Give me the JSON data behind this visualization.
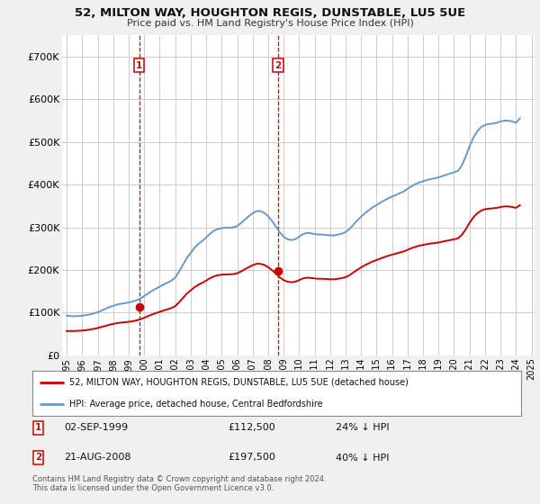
{
  "title": "52, MILTON WAY, HOUGHTON REGIS, DUNSTABLE, LU5 5UE",
  "subtitle": "Price paid vs. HM Land Registry's House Price Index (HPI)",
  "ylim": [
    0,
    750000
  ],
  "yticks": [
    0,
    100000,
    200000,
    300000,
    400000,
    500000,
    600000,
    700000
  ],
  "ytick_labels": [
    "£0",
    "£100K",
    "£200K",
    "£300K",
    "£400K",
    "£500K",
    "£600K",
    "£700K"
  ],
  "background_color": "#f0f0f0",
  "plot_bg_color": "#ffffff",
  "grid_color": "#cccccc",
  "line_color_hpi": "#6699cc",
  "line_color_price": "#cc0000",
  "vline_color": "#cc0000",
  "marker_color": "#cc0000",
  "transaction1_year": 1999.67,
  "transaction1_price": 112500,
  "transaction2_year": 2008.64,
  "transaction2_price": 197500,
  "legend_label_price": "52, MILTON WAY, HOUGHTON REGIS, DUNSTABLE, LU5 5UE (detached house)",
  "legend_label_hpi": "HPI: Average price, detached house, Central Bedfordshire",
  "annotation1_date": "02-SEP-1999",
  "annotation1_price": "£112,500",
  "annotation1_hpi": "24% ↓ HPI",
  "annotation2_date": "21-AUG-2008",
  "annotation2_price": "£197,500",
  "annotation2_hpi": "40% ↓ HPI",
  "footer": "Contains HM Land Registry data © Crown copyright and database right 2024.\nThis data is licensed under the Open Government Licence v3.0.",
  "hpi_years": [
    1995.0,
    1995.25,
    1995.5,
    1995.75,
    1996.0,
    1996.25,
    1996.5,
    1996.75,
    1997.0,
    1997.25,
    1997.5,
    1997.75,
    1998.0,
    1998.25,
    1998.5,
    1998.75,
    1999.0,
    1999.25,
    1999.5,
    1999.75,
    2000.0,
    2000.25,
    2000.5,
    2000.75,
    2001.0,
    2001.25,
    2001.5,
    2001.75,
    2002.0,
    2002.25,
    2002.5,
    2002.75,
    2003.0,
    2003.25,
    2003.5,
    2003.75,
    2004.0,
    2004.25,
    2004.5,
    2004.75,
    2005.0,
    2005.25,
    2005.5,
    2005.75,
    2006.0,
    2006.25,
    2006.5,
    2006.75,
    2007.0,
    2007.25,
    2007.5,
    2007.75,
    2008.0,
    2008.25,
    2008.5,
    2008.75,
    2009.0,
    2009.25,
    2009.5,
    2009.75,
    2010.0,
    2010.25,
    2010.5,
    2010.75,
    2011.0,
    2011.25,
    2011.5,
    2011.75,
    2012.0,
    2012.25,
    2012.5,
    2012.75,
    2013.0,
    2013.25,
    2013.5,
    2013.75,
    2014.0,
    2014.25,
    2014.5,
    2014.75,
    2015.0,
    2015.25,
    2015.5,
    2015.75,
    2016.0,
    2016.25,
    2016.5,
    2016.75,
    2017.0,
    2017.25,
    2017.5,
    2017.75,
    2018.0,
    2018.25,
    2018.5,
    2018.75,
    2019.0,
    2019.25,
    2019.5,
    2019.75,
    2020.0,
    2020.25,
    2020.5,
    2020.75,
    2021.0,
    2021.25,
    2021.5,
    2021.75,
    2022.0,
    2022.25,
    2022.5,
    2022.75,
    2023.0,
    2023.25,
    2023.5,
    2023.75,
    2024.0,
    2024.25
  ],
  "hpi_values": [
    93000,
    92000,
    91500,
    92000,
    93000,
    94000,
    96000,
    98000,
    101000,
    105000,
    109000,
    113000,
    116000,
    119000,
    121000,
    122000,
    124000,
    126000,
    129000,
    133000,
    139000,
    145000,
    151000,
    156000,
    161000,
    166000,
    170000,
    175000,
    182000,
    196000,
    212000,
    228000,
    240000,
    252000,
    261000,
    268000,
    276000,
    285000,
    292000,
    296000,
    298000,
    299000,
    299000,
    300000,
    303000,
    310000,
    318000,
    326000,
    333000,
    338000,
    338000,
    334000,
    326000,
    315000,
    302000,
    288000,
    278000,
    272000,
    270000,
    272000,
    278000,
    284000,
    287000,
    286000,
    284000,
    283000,
    283000,
    282000,
    281000,
    281000,
    283000,
    285000,
    289000,
    296000,
    306000,
    316000,
    325000,
    333000,
    340000,
    347000,
    352000,
    358000,
    363000,
    368000,
    372000,
    376000,
    380000,
    384000,
    390000,
    396000,
    401000,
    405000,
    408000,
    411000,
    413000,
    415000,
    417000,
    420000,
    423000,
    426000,
    429000,
    432000,
    445000,
    465000,
    490000,
    510000,
    525000,
    535000,
    540000,
    542000,
    543000,
    545000,
    548000,
    550000,
    550000,
    548000,
    545000,
    555000
  ],
  "price_indexed": [
    57000,
    57000,
    57000,
    57500,
    58000,
    59000,
    60500,
    62000,
    64000,
    66500,
    69000,
    71500,
    73500,
    75500,
    76700,
    77500,
    78600,
    79800,
    81900,
    84400,
    88100,
    91900,
    95700,
    98900,
    102000,
    105000,
    107800,
    110800,
    115300,
    124200,
    134400,
    144600,
    152200,
    159700,
    165500,
    169900,
    175100,
    180700,
    185100,
    187700,
    188900,
    189500,
    189700,
    190300,
    192200,
    196500,
    201800,
    206700,
    211200,
    214400,
    214400,
    211900,
    206700,
    199700,
    191500,
    182700,
    176300,
    172500,
    171200,
    172500,
    176300,
    180200,
    181900,
    181300,
    180100,
    179400,
    179400,
    178800,
    178200,
    178200,
    179400,
    180700,
    183300,
    187700,
    194000,
    200300,
    206100,
    211200,
    215600,
    220100,
    223200,
    227000,
    230100,
    233300,
    235900,
    238400,
    241000,
    243500,
    247300,
    251100,
    254200,
    256800,
    258800,
    260600,
    261900,
    263100,
    264400,
    266300,
    268200,
    270100,
    272000,
    274000,
    282200,
    294900,
    310600,
    323400,
    332900,
    339200,
    342400,
    343700,
    344400,
    345600,
    347600,
    348900,
    348900,
    347600,
    345600,
    351800
  ]
}
